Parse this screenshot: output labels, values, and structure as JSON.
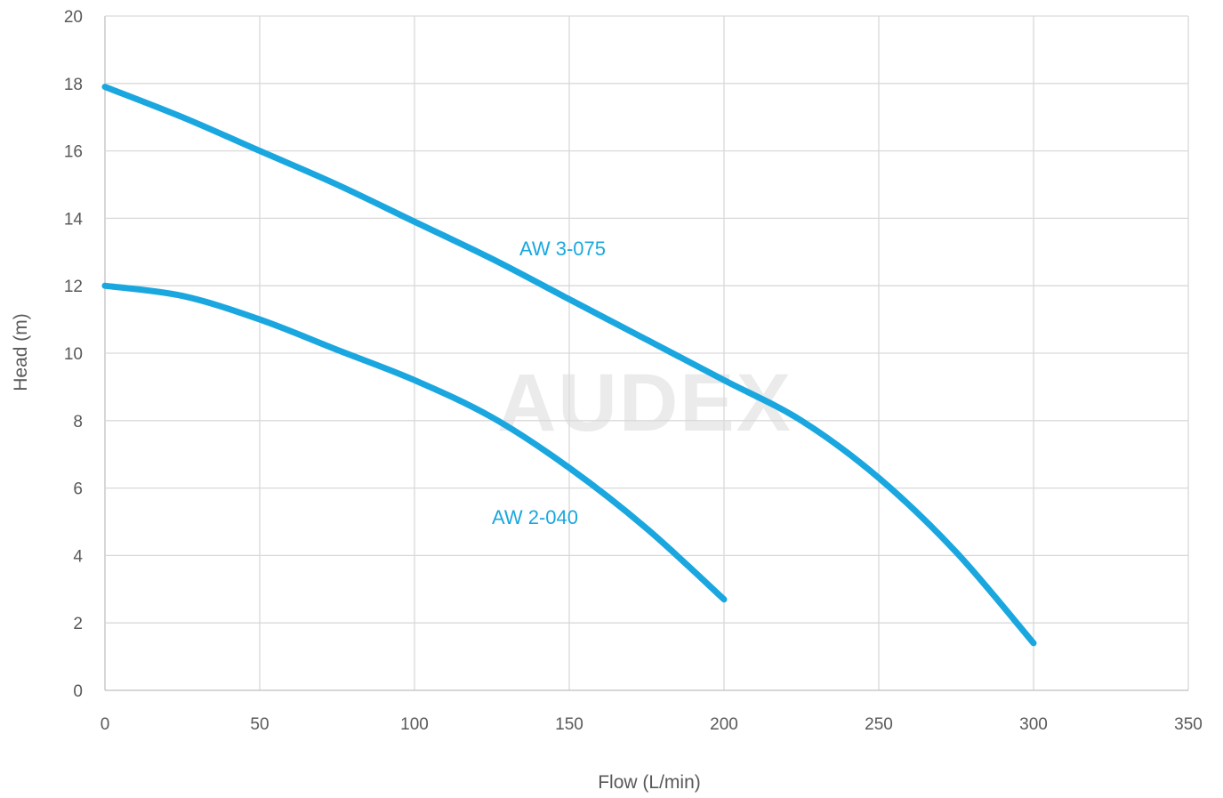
{
  "watermark": "AUDEX",
  "chart_data": {
    "type": "line",
    "xlabel": "Flow (L/min)",
    "ylabel": "Head (m)",
    "xlim": [
      0,
      350
    ],
    "ylim": [
      0,
      20
    ],
    "xticks": [
      "0",
      "50",
      "100",
      "150",
      "200",
      "250",
      "300",
      "350"
    ],
    "yticks": [
      "0",
      "2",
      "4",
      "6",
      "8",
      "10",
      "12",
      "14",
      "16",
      "18",
      "20"
    ],
    "grid": true,
    "line_color": "#1aa7df",
    "series": [
      {
        "name": "AW 3-075",
        "x": [
          0,
          25,
          50,
          75,
          100,
          125,
          150,
          175,
          200,
          225,
          250,
          275,
          300
        ],
        "y": [
          17.9,
          17.0,
          16.0,
          15.0,
          13.9,
          12.8,
          11.6,
          10.4,
          9.2,
          8.0,
          6.3,
          4.1,
          1.4
        ]
      },
      {
        "name": "AW 2-040",
        "x": [
          0,
          25,
          50,
          75,
          100,
          125,
          150,
          175,
          200
        ],
        "y": [
          12.0,
          11.7,
          11.0,
          10.1,
          9.2,
          8.1,
          6.6,
          4.8,
          2.7
        ]
      }
    ]
  }
}
